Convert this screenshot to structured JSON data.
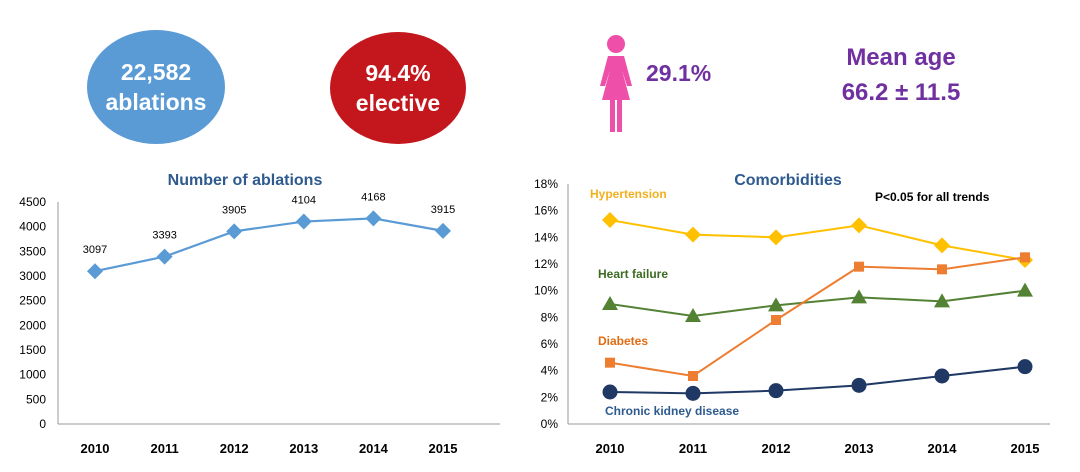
{
  "stats": {
    "total_ablations": {
      "value": "22,582",
      "label": "ablations"
    },
    "elective": {
      "value": "94.4%",
      "label": "elective"
    },
    "female": {
      "value": "29.1%",
      "icon": "female-icon"
    },
    "mean_age": {
      "label": "Mean age",
      "value": "66.2 ± 11.5"
    }
  },
  "colors": {
    "blue_circle": "#5b9bd5",
    "red_circle": "#c4171d",
    "female_pink": "#ee4fa8",
    "purple_text": "#7030a0",
    "title_blue": "#2e5a8f"
  },
  "chart_data": [
    {
      "type": "line",
      "title": "Number of ablations",
      "categories": [
        "2010",
        "2011",
        "2012",
        "2013",
        "2014",
        "2015"
      ],
      "values": [
        3097,
        3393,
        3905,
        4104,
        4168,
        3915
      ],
      "data_labels": [
        "3097",
        "3393",
        "3905",
        "4104",
        "4168",
        "3915"
      ],
      "ylim": [
        0,
        4500
      ],
      "yticks": [
        "0",
        "500",
        "1000",
        "1500",
        "2000",
        "2500",
        "3000",
        "3500",
        "4000",
        "4500"
      ],
      "xlabel": "",
      "ylabel": "",
      "color": "#5b9bd5",
      "marker": "diamond",
      "grid": false
    },
    {
      "type": "line",
      "title": "Comorbidities",
      "annotation": "P<0.05 for all trends",
      "categories": [
        "2010",
        "2011",
        "2012",
        "2013",
        "2014",
        "2015"
      ],
      "ylim": [
        0,
        18
      ],
      "yticks": [
        "0%",
        "2%",
        "4%",
        "6%",
        "8%",
        "10%",
        "12%",
        "14%",
        "16%",
        "18%"
      ],
      "grid": false,
      "series": [
        {
          "name": "Hypertension",
          "values": [
            15.3,
            14.2,
            14.0,
            14.9,
            13.4,
            12.3
          ],
          "color": "#ffc000",
          "label_color": "#f2b01e",
          "marker": "diamond"
        },
        {
          "name": "Heart failure",
          "values": [
            9.0,
            8.1,
            8.9,
            9.5,
            9.2,
            10.0
          ],
          "color": "#548235",
          "label_color": "#3d6b22",
          "marker": "triangle"
        },
        {
          "name": "Diabetes",
          "values": [
            4.6,
            3.6,
            7.8,
            11.8,
            11.6,
            12.5
          ],
          "color": "#ed7d31",
          "label_color": "#e26b12",
          "marker": "square"
        },
        {
          "name": "Chronic kidney disease",
          "values": [
            2.4,
            2.3,
            2.5,
            2.9,
            3.6,
            4.3
          ],
          "color": "#1f3864",
          "label_color": "#2e5a8f",
          "marker": "circle"
        }
      ]
    }
  ]
}
